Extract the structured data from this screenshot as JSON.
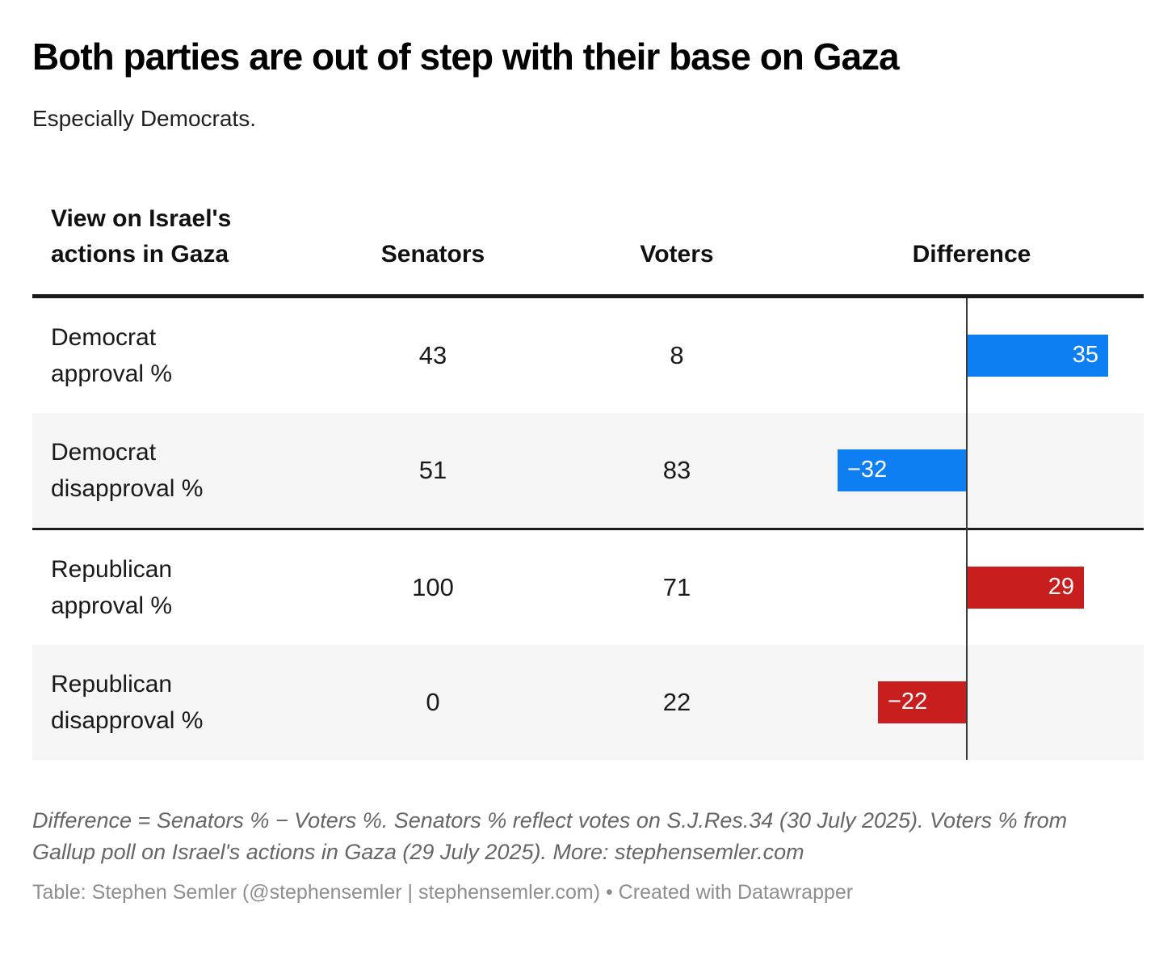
{
  "title": "Both parties are out of step with their base on Gaza",
  "subtitle": "Especially Democrats.",
  "colors": {
    "democrat": "#0d7ff2",
    "republican": "#c81e1e",
    "zero_line": "#3a3a3a",
    "alt_row_bg": "#f5f5f5",
    "rule": "#1a1a1a"
  },
  "table": {
    "columns": [
      "View on Israel's\nactions in Gaza",
      "Senators",
      "Voters",
      "Difference"
    ],
    "rows": [
      {
        "label": "Democrat\napproval %",
        "senators": 43,
        "voters": 8,
        "difference": 35,
        "party": "democrat"
      },
      {
        "label": "Democrat\ndisapproval %",
        "senators": 51,
        "voters": 83,
        "difference": -32,
        "party": "democrat"
      },
      {
        "label": "Republican\napproval %",
        "senators": 100,
        "voters": 71,
        "difference": 29,
        "party": "republican"
      },
      {
        "label": "Republican\ndisapproval %",
        "senators": 0,
        "voters": 22,
        "difference": -22,
        "party": "republican"
      }
    ],
    "section_break_after": 2
  },
  "chart_data": {
    "type": "table",
    "title": "Both parties are out of step with their base on Gaza",
    "subtitle": "Especially Democrats.",
    "columns": [
      "View on Israel's actions in Gaza",
      "Senators",
      "Voters",
      "Difference"
    ],
    "categories": [
      "Democrat approval %",
      "Democrat disapproval %",
      "Republican approval %",
      "Republican disapproval %"
    ],
    "series": [
      {
        "name": "Senators",
        "values": [
          43,
          51,
          100,
          0
        ]
      },
      {
        "name": "Voters",
        "values": [
          8,
          83,
          71,
          22
        ]
      },
      {
        "name": "Difference",
        "values": [
          35,
          -32,
          29,
          -22
        ]
      }
    ],
    "difference_bar_colors": [
      "#0d7ff2",
      "#0d7ff2",
      "#c81e1e",
      "#c81e1e"
    ],
    "bar_axis_range": [
      -45,
      45
    ],
    "legend_position": "none",
    "grid": false
  },
  "footnote": "Difference = Senators % − Voters %. Senators % reflect votes on S.J.Res.34 (30 July 2025). Voters % from Gallup poll on Israel's actions in Gaza (29 July 2025). More: stephensemler.com",
  "credit": "Table: Stephen Semler (@stephensemler | stephensemler.com) • Created with Datawrapper"
}
